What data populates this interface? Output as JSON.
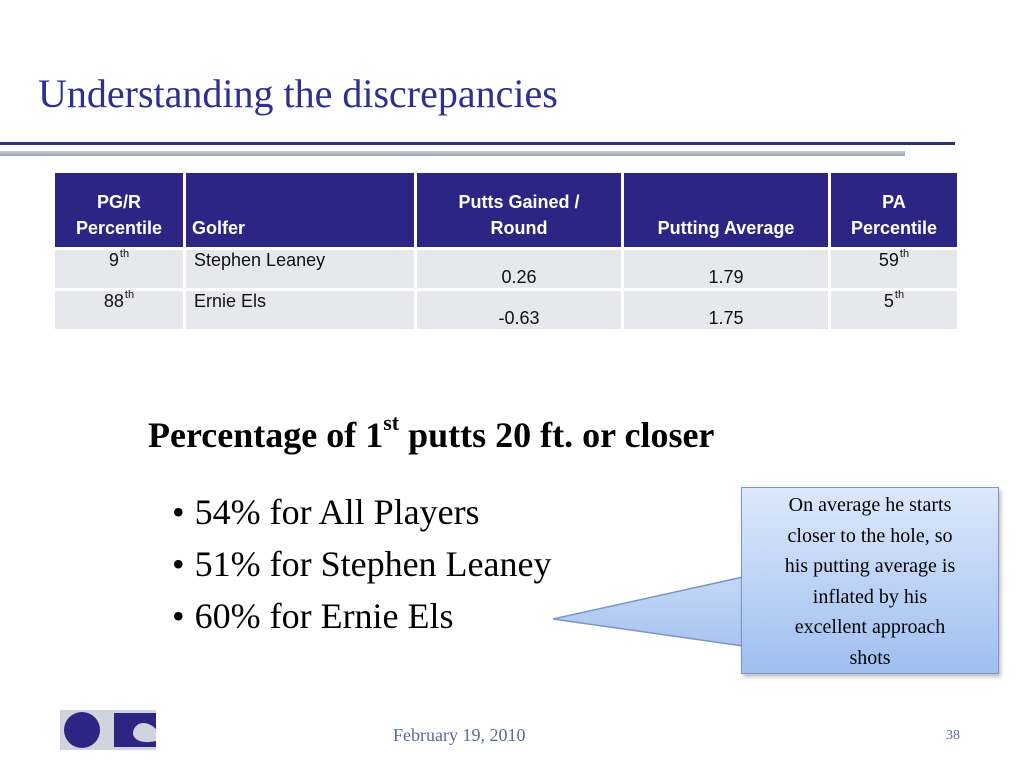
{
  "slide": {
    "title": "Understanding the discrepancies"
  },
  "table": {
    "headers": {
      "pgr_line1": "PG/R",
      "pgr_line2": "Percentile",
      "golfer": "Golfer",
      "putts_line1": "Putts Gained /",
      "putts_line2": "Round",
      "putting_avg": "Putting Average",
      "pa_line1": "PA",
      "pa_line2": "Percentile"
    },
    "rows": [
      {
        "pgr_num": "9",
        "pgr_sup": "th",
        "golfer": "Stephen Leaney",
        "putts_gained": "0.26",
        "putting_avg": "1.79",
        "pa_num": "59",
        "pa_sup": "th"
      },
      {
        "pgr_num": "88",
        "pgr_sup": "th",
        "golfer": "Ernie Els",
        "putts_gained": "-0.63",
        "putting_avg": "1.75",
        "pa_num": "5",
        "pa_sup": "th"
      }
    ]
  },
  "heading": {
    "pre": "Percentage of 1",
    "sup": "st",
    "post": " putts 20 ft. or closer"
  },
  "bullets": [
    "54% for All Players",
    "51% for Stephen Leaney",
    "60% for Ernie Els"
  ],
  "callout": {
    "lines": [
      "On average he starts",
      "closer to the hole, so",
      "his putting average is",
      "inflated by his",
      "excellent approach",
      "shots"
    ]
  },
  "footer": {
    "date": "February 19, 2010",
    "page": "38"
  },
  "colors": {
    "title": "#2e2f8f",
    "header_bg": "#2b2683",
    "cell_bg": "#e6e8ec",
    "logo": "#2b2683"
  },
  "icons": {
    "logo": "company-logo"
  }
}
